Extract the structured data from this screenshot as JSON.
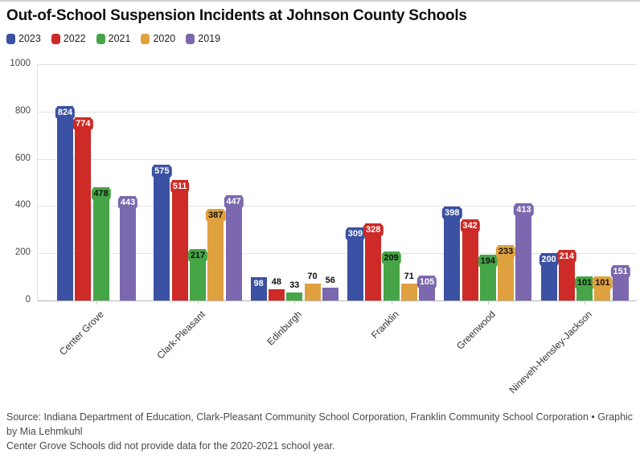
{
  "title": "Out-of-School Suspension Incidents at Johnson County Schools",
  "chart_data": {
    "type": "bar",
    "title": "Out-of-School Suspension Incidents at Johnson County Schools",
    "categories": [
      "Center Grove",
      "Clark-Pleasant",
      "Edinburgh",
      "Franklin",
      "Greenwood",
      "Nineveh-Hensley-Jackson"
    ],
    "series": [
      {
        "name": "2023",
        "color": "#3b51a3",
        "label_text_color": "#ffffff",
        "values": [
          824,
          575,
          98,
          309,
          398,
          200
        ]
      },
      {
        "name": "2022",
        "color": "#ce2a27",
        "label_text_color": "#ffffff",
        "values": [
          774,
          511,
          48,
          328,
          342,
          214
        ]
      },
      {
        "name": "2021",
        "color": "#46a546",
        "label_text_color": "#111111",
        "values": [
          478,
          217,
          33,
          209,
          194,
          101
        ]
      },
      {
        "name": "2020",
        "color": "#dfa13f",
        "label_text_color": "#111111",
        "values": [
          null,
          387,
          70,
          71,
          233,
          101
        ]
      },
      {
        "name": "2019",
        "color": "#7b68ae",
        "label_text_color": "#ffffff",
        "values": [
          443,
          447,
          56,
          105,
          413,
          151
        ]
      }
    ],
    "ylim": [
      0,
      1000
    ],
    "yticks": [
      0,
      200,
      400,
      600,
      800,
      1000
    ],
    "grid": true,
    "legend_position": "top-left",
    "xlabel": "",
    "ylabel": ""
  },
  "footer": {
    "source": "Source: Indiana Department of Education, Clark-Pleasant Community School Corporation, Franklin Community School Corporation • Graphic by Mia Lehmkuhl",
    "note": "Center Grove Schools did not provide data for the 2020-2021 school year."
  }
}
